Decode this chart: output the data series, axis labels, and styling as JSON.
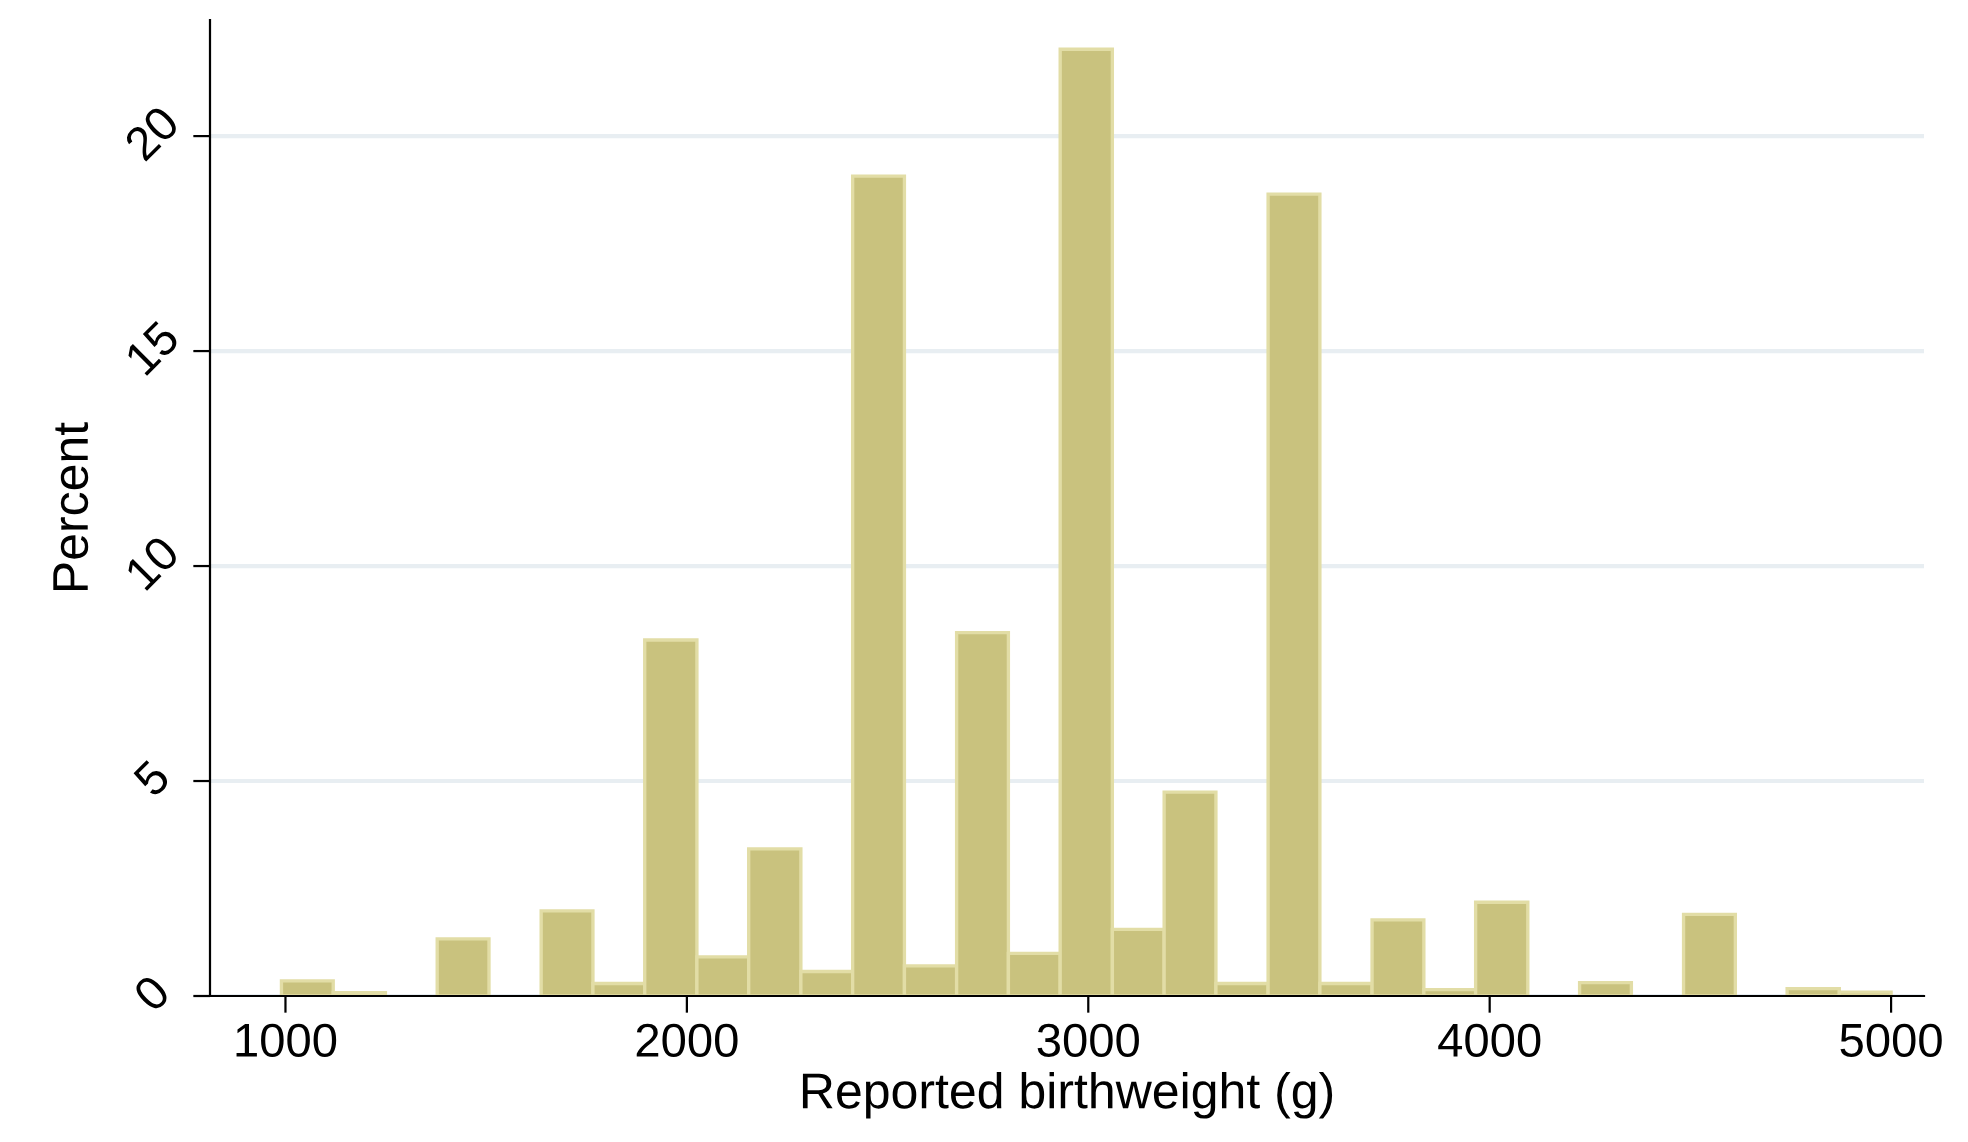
{
  "chart_data": {
    "type": "histogram",
    "xlabel": "Reported birthweight (g)",
    "ylabel": "Percent",
    "bins": [
      990,
      1119,
      1249,
      1378,
      1507,
      1637,
      1766,
      1895,
      2025,
      2154,
      2284,
      2413,
      2542,
      2672,
      2801,
      2930,
      3060,
      3189,
      3318,
      3448,
      3577,
      3707,
      3836,
      3965,
      4095,
      4224,
      4353,
      4483,
      4612,
      4741,
      4871,
      5000
    ],
    "values": [
      0.35,
      0.08,
      0,
      1.33,
      0,
      1.98,
      0.29,
      8.28,
      0.91,
      3.42,
      0.57,
      19.07,
      0.7,
      8.45,
      0.99,
      22.02,
      1.55,
      4.74,
      0.29,
      18.65,
      0.29,
      1.77,
      0.15,
      2.18,
      0,
      0.31,
      0,
      1.9,
      0,
      0.17,
      0.09
    ],
    "color": "#c9c27e",
    "xlim": [
      812,
      5082
    ],
    "xticks": [
      1000,
      2000,
      3000,
      4000,
      5000
    ],
    "ylim": [
      0,
      22.7
    ],
    "yticks": [
      0,
      5,
      10,
      15,
      20
    ],
    "grid": "y"
  }
}
